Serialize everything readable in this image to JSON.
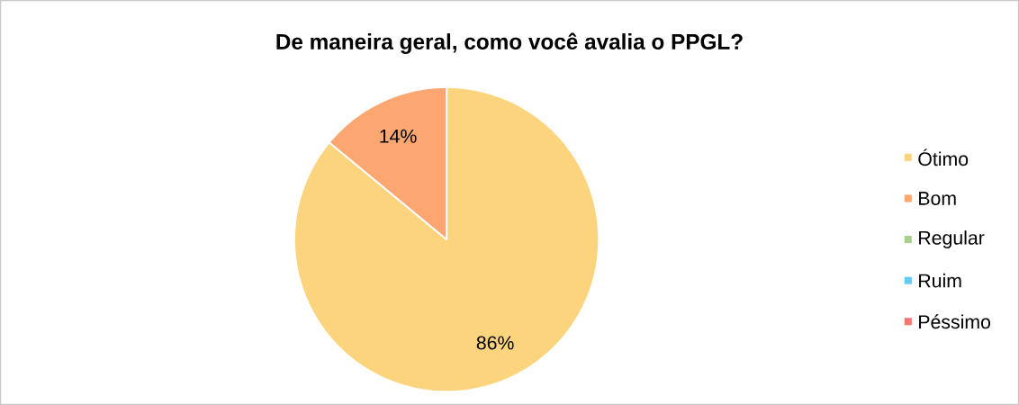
{
  "chart_data": {
    "type": "pie",
    "title": "De maneira geral, como você avalia o PPGL?",
    "categories": [
      "Ótimo",
      "Bom",
      "Regular",
      "Ruim",
      "Péssimo"
    ],
    "values": [
      86,
      14,
      0,
      0,
      0
    ],
    "colors": [
      "#fdd47e",
      "#fca772",
      "#a9d18e",
      "#5fcdf5",
      "#f4776e"
    ],
    "value_labels": [
      "86%",
      "14%",
      null,
      null,
      null
    ],
    "legend": "right"
  }
}
